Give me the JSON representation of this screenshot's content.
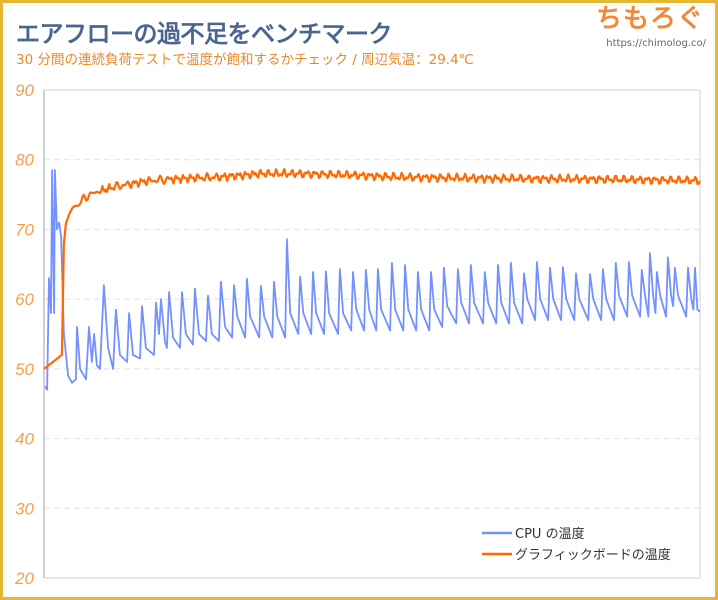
{
  "header": {
    "title": "エアフローの過不足をベンチマーク",
    "subtitle": "30 分間の連続負荷テストで温度が飽和するかチェック / 周辺気温：29.4℃",
    "logo": "ちもろぐ",
    "url": "https://chimolog.co/"
  },
  "colors": {
    "frame": "#e6b832",
    "title": "#4a6690",
    "cpu": "#7391ff",
    "gpu": "#ff6a00",
    "tick": "#f3a04e"
  },
  "chart_data": {
    "type": "line",
    "title": "",
    "xlabel": "",
    "ylabel": "",
    "xlim": [
      0,
      30
    ],
    "ylim": [
      20,
      90
    ],
    "yticks": [
      "20",
      "30",
      "40",
      "50",
      "60",
      "70",
      "80",
      "90"
    ],
    "grid": true,
    "legend_position": "bottom-right",
    "series": [
      {
        "name": "CPU の温度",
        "color": "#7391ff",
        "points": [
          [
            0.05,
            47.5
          ],
          [
            0.14,
            47
          ],
          [
            0.23,
            63
          ],
          [
            0.32,
            58
          ],
          [
            0.37,
            78.5
          ],
          [
            0.46,
            58
          ],
          [
            0.5,
            78.5
          ],
          [
            0.59,
            70
          ],
          [
            0.69,
            71
          ],
          [
            0.78,
            69
          ],
          [
            0.91,
            55
          ],
          [
            1.1,
            49
          ],
          [
            1.28,
            48
          ],
          [
            1.46,
            48.5
          ],
          [
            1.51,
            56
          ],
          [
            1.65,
            50
          ],
          [
            1.92,
            48.5
          ],
          [
            2.06,
            56
          ],
          [
            2.19,
            51
          ],
          [
            2.29,
            55
          ],
          [
            2.42,
            50.5
          ],
          [
            2.56,
            50
          ],
          [
            2.74,
            62
          ],
          [
            2.93,
            53
          ],
          [
            3.16,
            50
          ],
          [
            3.29,
            58.5
          ],
          [
            3.47,
            52
          ],
          [
            3.8,
            51
          ],
          [
            3.89,
            58
          ],
          [
            4.07,
            52
          ],
          [
            4.39,
            51.5
          ],
          [
            4.48,
            59
          ],
          [
            4.66,
            53
          ],
          [
            5.03,
            52
          ],
          [
            5.12,
            59.5
          ],
          [
            5.26,
            55
          ],
          [
            5.35,
            60
          ],
          [
            5.53,
            54
          ],
          [
            5.62,
            53
          ],
          [
            5.72,
            61
          ],
          [
            5.9,
            54.5
          ],
          [
            6.22,
            53
          ],
          [
            6.31,
            61
          ],
          [
            6.49,
            55
          ],
          [
            6.81,
            53.5
          ],
          [
            6.9,
            61.5
          ],
          [
            7.09,
            55
          ],
          [
            7.41,
            54
          ],
          [
            7.5,
            60.5
          ],
          [
            7.68,
            55
          ],
          [
            8.0,
            54
          ],
          [
            8.09,
            62.5
          ],
          [
            8.28,
            56
          ],
          [
            8.6,
            54.5
          ],
          [
            8.69,
            62.0
          ],
          [
            8.84,
            57.5
          ],
          [
            9.2,
            54.5
          ],
          [
            9.28,
            62.9
          ],
          [
            9.43,
            57.5
          ],
          [
            9.84,
            54.5
          ],
          [
            9.92,
            61.9
          ],
          [
            10.07,
            57.5
          ],
          [
            10.44,
            54.5
          ],
          [
            10.52,
            62.5
          ],
          [
            10.67,
            57.5
          ],
          [
            11.03,
            54.5
          ],
          [
            11.11,
            68.6
          ],
          [
            11.26,
            58
          ],
          [
            11.63,
            55
          ],
          [
            11.71,
            63.2
          ],
          [
            11.86,
            58
          ],
          [
            12.22,
            55
          ],
          [
            12.3,
            63.9
          ],
          [
            12.45,
            58
          ],
          [
            12.81,
            55
          ],
          [
            12.89,
            64.0
          ],
          [
            13.04,
            58
          ],
          [
            13.45,
            55
          ],
          [
            13.53,
            64.3
          ],
          [
            13.68,
            58
          ],
          [
            14.05,
            55.5
          ],
          [
            14.13,
            63.9
          ],
          [
            14.28,
            58.5
          ],
          [
            14.64,
            55.5
          ],
          [
            14.72,
            64.2
          ],
          [
            14.87,
            58.5
          ],
          [
            15.19,
            55.5
          ],
          [
            15.27,
            64.3
          ],
          [
            15.42,
            58.5
          ],
          [
            15.83,
            55.5
          ],
          [
            15.91,
            65.2
          ],
          [
            16.06,
            58.5
          ],
          [
            16.43,
            55.5
          ],
          [
            16.51,
            64.9
          ],
          [
            16.66,
            58.5
          ],
          [
            17.02,
            55.5
          ],
          [
            17.1,
            63.9
          ],
          [
            17.25,
            58.5
          ],
          [
            17.62,
            55.5
          ],
          [
            17.7,
            63.9
          ],
          [
            17.85,
            58.5
          ],
          [
            18.21,
            56
          ],
          [
            18.29,
            64.5
          ],
          [
            18.44,
            59
          ],
          [
            18.85,
            56.5
          ],
          [
            18.93,
            64.3
          ],
          [
            19.08,
            59.5
          ],
          [
            19.44,
            56.5
          ],
          [
            19.52,
            64.9
          ],
          [
            19.67,
            59.5
          ],
          [
            20.08,
            56.5
          ],
          [
            20.16,
            63.9
          ],
          [
            20.31,
            59.5
          ],
          [
            20.68,
            56.5
          ],
          [
            20.76,
            64.9
          ],
          [
            20.91,
            59.5
          ],
          [
            21.27,
            56.5
          ],
          [
            21.35,
            65.2
          ],
          [
            21.5,
            59.5
          ],
          [
            21.87,
            56.5
          ],
          [
            21.95,
            63.7
          ],
          [
            22.1,
            60
          ],
          [
            22.46,
            57
          ],
          [
            22.54,
            65.3
          ],
          [
            22.69,
            60
          ],
          [
            23.06,
            57
          ],
          [
            23.14,
            64.5
          ],
          [
            23.29,
            60
          ],
          [
            23.65,
            57
          ],
          [
            23.73,
            64.6
          ],
          [
            23.88,
            60
          ],
          [
            24.25,
            57
          ],
          [
            24.33,
            63.7
          ],
          [
            24.48,
            60
          ],
          [
            24.89,
            57
          ],
          [
            24.97,
            63.6
          ],
          [
            25.12,
            60
          ],
          [
            25.48,
            57
          ],
          [
            25.56,
            64.3
          ],
          [
            25.71,
            60
          ],
          [
            26.07,
            57
          ],
          [
            26.15,
            65.2
          ],
          [
            26.3,
            60.5
          ],
          [
            26.67,
            57.5
          ],
          [
            26.75,
            65.3
          ],
          [
            26.9,
            60.5
          ],
          [
            27.26,
            57.5
          ],
          [
            27.34,
            64.2
          ],
          [
            27.49,
            60.5
          ],
          [
            27.64,
            57.5
          ],
          [
            27.71,
            66.6
          ],
          [
            27.86,
            60.5
          ],
          [
            27.96,
            58
          ],
          [
            28.03,
            63.9
          ],
          [
            28.18,
            60.5
          ],
          [
            28.45,
            57.5
          ],
          [
            28.53,
            66.0
          ],
          [
            28.68,
            60.5
          ],
          [
            28.77,
            59
          ],
          [
            28.85,
            64.5
          ],
          [
            29.0,
            60.5
          ],
          [
            29.37,
            57.5
          ],
          [
            29.45,
            64.5
          ],
          [
            29.6,
            60
          ],
          [
            29.7,
            58.5
          ],
          [
            29.77,
            64.5
          ],
          [
            29.88,
            58.5
          ],
          [
            30,
            58.2
          ]
        ]
      },
      {
        "name": "グラフィックボードの温度",
        "color": "#ff6a00",
        "points": [
          [
            0,
            50
          ],
          [
            0.82,
            52
          ],
          [
            0.91,
            68
          ],
          [
            1.0,
            71
          ],
          [
            1.3,
            72.8
          ],
          [
            1.65,
            74
          ],
          [
            2.1,
            75
          ],
          [
            2.56,
            75.5
          ],
          [
            3.2,
            76.1
          ],
          [
            3.93,
            76.5
          ],
          [
            4.8,
            77
          ],
          [
            5.76,
            77.2
          ],
          [
            7,
            77.4
          ],
          [
            8,
            77.5
          ],
          [
            9.9,
            78
          ],
          [
            11.7,
            78
          ],
          [
            14,
            77.8
          ],
          [
            16.3,
            77.5
          ],
          [
            20.9,
            77.3
          ],
          [
            25.4,
            77.2
          ],
          [
            30,
            77
          ]
        ]
      }
    ]
  }
}
